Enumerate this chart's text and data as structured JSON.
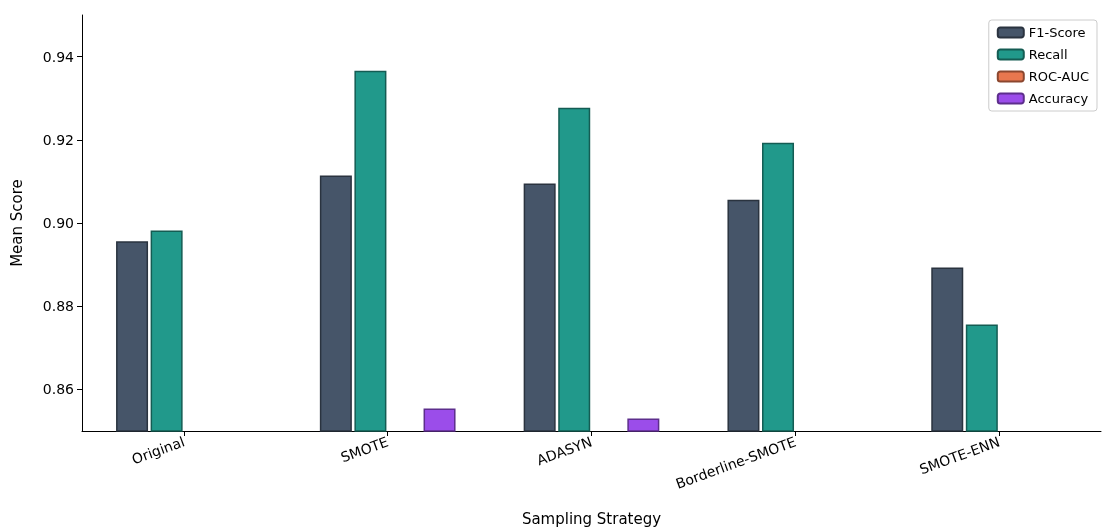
{
  "chart_data": {
    "type": "bar",
    "xlabel": "Sampling Strategy",
    "ylabel": "Mean Score",
    "categories": [
      "Original",
      "SMOTE",
      "ADASYN",
      "Borderline-SMOTE",
      "SMOTE-ENN"
    ],
    "series": [
      {
        "name": "F1-Score",
        "color": "#465569",
        "values": [
          0.8956,
          0.9114,
          0.9095,
          0.9056,
          0.8893
        ]
      },
      {
        "name": "Recall",
        "color": "#21998b",
        "values": [
          0.8982,
          0.9366,
          0.9277,
          0.9193,
          0.8756
        ]
      },
      {
        "name": "ROC-AUC",
        "color": "#e8774f",
        "values": [
          null,
          null,
          null,
          null,
          null
        ]
      },
      {
        "name": "Accuracy",
        "color": "#9b4dea",
        "values": [
          null,
          0.8554,
          0.853,
          null,
          null
        ]
      }
    ],
    "ylim": [
      0.85,
      0.95
    ],
    "yticks": [
      0.86,
      0.88,
      {
        "value": 0.9,
        "label": "0.90"
      },
      0.92,
      0.94
    ],
    "grid": false,
    "legend": "top right"
  }
}
